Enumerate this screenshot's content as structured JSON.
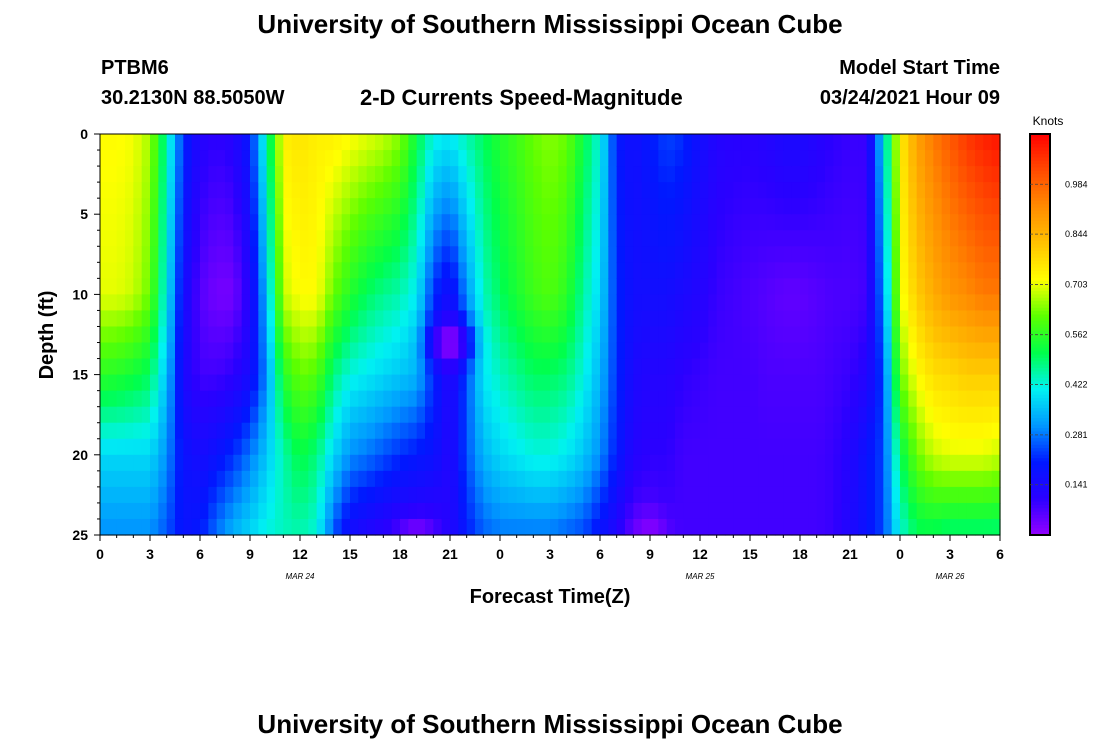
{
  "header": {
    "title_top": "University of Southern Mississippi Ocean Cube",
    "station_id": "PTBM6",
    "station_coords": "30.2130N 88.5050W",
    "subtitle": "2-D Currents Speed-Magnitude",
    "model_start_label": "Model Start Time",
    "model_start_time": "03/24/2021 Hour 09"
  },
  "footer": {
    "title_bottom": "University of Southern Mississippi Ocean Cube"
  },
  "chart_data": {
    "type": "heatmap",
    "title": "2-D Currents Speed-Magnitude",
    "xlabel": "Forecast Time(Z)",
    "ylabel": "Depth (ft)",
    "x_hours_range": [
      0,
      54
    ],
    "x_tick_labels": [
      "0",
      "3",
      "6",
      "9",
      "12",
      "15",
      "18",
      "21",
      "0",
      "3",
      "6",
      "9",
      "12",
      "15",
      "18",
      "21",
      "0",
      "3",
      "6"
    ],
    "date_labels": [
      {
        "label": "MAR 24",
        "hour": 12
      },
      {
        "label": "MAR 25",
        "hour": 36
      },
      {
        "label": "MAR 26",
        "hour": 51
      }
    ],
    "y_range": [
      0,
      25
    ],
    "y_tick_labels": [
      "0",
      "5",
      "10",
      "15",
      "20",
      "25"
    ],
    "y_tick_values": [
      0,
      5,
      10,
      15,
      20,
      25
    ],
    "colorbar": {
      "unit_label": "Knots",
      "min": 0.0,
      "max": 1.125,
      "tick_labels": [
        "0.984",
        "0.844",
        "0.703",
        "0.562",
        "0.422",
        "0.281",
        "0.141"
      ],
      "tick_values": [
        0.984,
        0.844,
        0.703,
        0.562,
        0.422,
        0.281,
        0.141
      ],
      "colors": [
        "#9400ff",
        "#2a00ff",
        "#0018ff",
        "#0098ff",
        "#00f2f2",
        "#00ff4a",
        "#5cff00",
        "#ffff00",
        "#ffc200",
        "#ff8c00",
        "#ff4a00",
        "#ff0000"
      ]
    },
    "columns": [
      {
        "hour": 0,
        "top": 0.72,
        "d10": 0.7,
        "d15": 0.56,
        "d20": 0.38,
        "bottom": 0.3
      },
      {
        "hour": 1,
        "top": 0.72,
        "d10": 0.7,
        "d15": 0.55,
        "d20": 0.38,
        "bottom": 0.3
      },
      {
        "hour": 2,
        "top": 0.71,
        "d10": 0.68,
        "d15": 0.53,
        "d20": 0.38,
        "bottom": 0.3
      },
      {
        "hour": 3,
        "top": 0.66,
        "d10": 0.62,
        "d15": 0.5,
        "d20": 0.38,
        "bottom": 0.3
      },
      {
        "hour": 4,
        "top": 0.45,
        "d10": 0.4,
        "d15": 0.35,
        "d20": 0.3,
        "bottom": 0.25
      },
      {
        "hour": 5,
        "top": 0.22,
        "d10": 0.16,
        "d15": 0.14,
        "d20": 0.18,
        "bottom": 0.18
      },
      {
        "hour": 6,
        "top": 0.12,
        "d10": 0.06,
        "d15": 0.08,
        "d20": 0.15,
        "bottom": 0.2
      },
      {
        "hour": 7,
        "top": 0.1,
        "d10": 0.03,
        "d15": 0.08,
        "d20": 0.18,
        "bottom": 0.28
      },
      {
        "hour": 8,
        "top": 0.12,
        "d10": 0.03,
        "d15": 0.1,
        "d20": 0.22,
        "bottom": 0.34
      },
      {
        "hour": 9,
        "top": 0.2,
        "d10": 0.12,
        "d15": 0.15,
        "d20": 0.28,
        "bottom": 0.38
      },
      {
        "hour": 10,
        "top": 0.45,
        "d10": 0.35,
        "d15": 0.3,
        "d20": 0.36,
        "bottom": 0.42
      },
      {
        "hour": 11,
        "top": 0.74,
        "d10": 0.68,
        "d15": 0.55,
        "d20": 0.45,
        "bottom": 0.44
      },
      {
        "hour": 12,
        "top": 0.76,
        "d10": 0.72,
        "d15": 0.62,
        "d20": 0.52,
        "bottom": 0.45
      },
      {
        "hour": 13,
        "top": 0.74,
        "d10": 0.72,
        "d15": 0.6,
        "d20": 0.48,
        "bottom": 0.42
      },
      {
        "hour": 14,
        "top": 0.74,
        "d10": 0.62,
        "d15": 0.48,
        "d20": 0.38,
        "bottom": 0.25
      },
      {
        "hour": 15,
        "top": 0.72,
        "d10": 0.55,
        "d15": 0.42,
        "d20": 0.3,
        "bottom": 0.15
      },
      {
        "hour": 16,
        "top": 0.7,
        "d10": 0.5,
        "d15": 0.4,
        "d20": 0.28,
        "bottom": 0.12
      },
      {
        "hour": 17,
        "top": 0.68,
        "d10": 0.47,
        "d15": 0.38,
        "d20": 0.25,
        "bottom": 0.1
      },
      {
        "hour": 18,
        "top": 0.64,
        "d10": 0.45,
        "d15": 0.36,
        "d20": 0.22,
        "bottom": 0.08
      },
      {
        "hour": 19,
        "top": 0.52,
        "d10": 0.4,
        "d15": 0.34,
        "d20": 0.2,
        "bottom": 0.08
      },
      {
        "hour": 20,
        "top": 0.42,
        "d10": 0.22,
        "d15": 0.22,
        "d20": 0.18,
        "bottom": 0.08
      },
      {
        "hour": 21,
        "top": 0.4,
        "d10": 0.15,
        "d15": 0.12,
        "d20": 0.12,
        "bottom": 0.12
      },
      {
        "hour": 22,
        "top": 0.45,
        "d10": 0.3,
        "d15": 0.25,
        "d20": 0.25,
        "bottom": 0.2
      },
      {
        "hour": 23,
        "top": 0.5,
        "d10": 0.44,
        "d15": 0.4,
        "d20": 0.34,
        "bottom": 0.26
      },
      {
        "hour": 24,
        "top": 0.55,
        "d10": 0.5,
        "d15": 0.44,
        "d20": 0.38,
        "bottom": 0.28
      },
      {
        "hour": 25,
        "top": 0.58,
        "d10": 0.54,
        "d15": 0.47,
        "d20": 0.4,
        "bottom": 0.28
      },
      {
        "hour": 26,
        "top": 0.62,
        "d10": 0.58,
        "d15": 0.5,
        "d20": 0.42,
        "bottom": 0.28
      },
      {
        "hour": 27,
        "top": 0.64,
        "d10": 0.6,
        "d15": 0.5,
        "d20": 0.42,
        "bottom": 0.28
      },
      {
        "hour": 28,
        "top": 0.62,
        "d10": 0.56,
        "d15": 0.48,
        "d20": 0.4,
        "bottom": 0.26
      },
      {
        "hour": 29,
        "top": 0.52,
        "d10": 0.46,
        "d15": 0.42,
        "d20": 0.36,
        "bottom": 0.24
      },
      {
        "hour": 30,
        "top": 0.42,
        "d10": 0.38,
        "d15": 0.34,
        "d20": 0.3,
        "bottom": 0.18
      },
      {
        "hour": 31,
        "top": 0.2,
        "d10": 0.22,
        "d15": 0.22,
        "d20": 0.2,
        "bottom": 0.12
      },
      {
        "hour": 32,
        "top": 0.16,
        "d10": 0.16,
        "d15": 0.14,
        "d20": 0.12,
        "bottom": 0.06
      },
      {
        "hour": 33,
        "top": 0.2,
        "d10": 0.16,
        "d15": 0.12,
        "d20": 0.1,
        "bottom": 0.06
      },
      {
        "hour": 34,
        "top": 0.24,
        "d10": 0.16,
        "d15": 0.12,
        "d20": 0.1,
        "bottom": 0.08
      },
      {
        "hour": 35,
        "top": 0.22,
        "d10": 0.14,
        "d15": 0.1,
        "d20": 0.08,
        "bottom": 0.08
      },
      {
        "hour": 36,
        "top": 0.16,
        "d10": 0.12,
        "d15": 0.09,
        "d20": 0.08,
        "bottom": 0.08
      },
      {
        "hour": 37,
        "top": 0.12,
        "d10": 0.09,
        "d15": 0.08,
        "d20": 0.08,
        "bottom": 0.08
      },
      {
        "hour": 38,
        "top": 0.11,
        "d10": 0.08,
        "d15": 0.08,
        "d20": 0.08,
        "bottom": 0.08
      },
      {
        "hour": 39,
        "top": 0.11,
        "d10": 0.07,
        "d15": 0.08,
        "d20": 0.08,
        "bottom": 0.08
      },
      {
        "hour": 40,
        "top": 0.12,
        "d10": 0.06,
        "d15": 0.07,
        "d20": 0.08,
        "bottom": 0.08
      },
      {
        "hour": 41,
        "top": 0.14,
        "d10": 0.05,
        "d15": 0.07,
        "d20": 0.08,
        "bottom": 0.08
      },
      {
        "hour": 42,
        "top": 0.14,
        "d10": 0.05,
        "d15": 0.07,
        "d20": 0.08,
        "bottom": 0.08
      },
      {
        "hour": 43,
        "top": 0.12,
        "d10": 0.06,
        "d15": 0.07,
        "d20": 0.08,
        "bottom": 0.08
      },
      {
        "hour": 44,
        "top": 0.1,
        "d10": 0.07,
        "d15": 0.08,
        "d20": 0.09,
        "bottom": 0.09
      },
      {
        "hour": 45,
        "top": 0.09,
        "d10": 0.07,
        "d15": 0.09,
        "d20": 0.12,
        "bottom": 0.13
      },
      {
        "hour": 46,
        "top": 0.09,
        "d10": 0.08,
        "d15": 0.12,
        "d20": 0.18,
        "bottom": 0.18
      },
      {
        "hour": 47,
        "top": 0.38,
        "d10": 0.3,
        "d15": 0.24,
        "d20": 0.24,
        "bottom": 0.24
      },
      {
        "hour": 48,
        "top": 0.74,
        "d10": 0.7,
        "d15": 0.62,
        "d20": 0.5,
        "bottom": 0.42
      },
      {
        "hour": 49,
        "top": 0.88,
        "d10": 0.8,
        "d15": 0.72,
        "d20": 0.62,
        "bottom": 0.5
      },
      {
        "hour": 50,
        "top": 0.95,
        "d10": 0.86,
        "d15": 0.77,
        "d20": 0.68,
        "bottom": 0.5
      },
      {
        "hour": 51,
        "top": 1.0,
        "d10": 0.9,
        "d15": 0.78,
        "d20": 0.7,
        "bottom": 0.48
      },
      {
        "hour": 52,
        "top": 1.05,
        "d10": 0.92,
        "d15": 0.8,
        "d20": 0.7,
        "bottom": 0.48
      },
      {
        "hour": 53,
        "top": 1.08,
        "d10": 0.95,
        "d15": 0.8,
        "d20": 0.7,
        "bottom": 0.48
      },
      {
        "hour": 54,
        "top": 1.1,
        "d10": 0.95,
        "d15": 0.8,
        "d20": 0.68,
        "bottom": 0.48
      }
    ],
    "patches": [
      {
        "hour": 21,
        "depth": 13,
        "value": 0.01,
        "radius_hours": 1.2,
        "radius_depth": 1.4
      },
      {
        "hour": 33,
        "depth": 24.5,
        "value": 0.02,
        "radius_hours": 1.0,
        "radius_depth": 1.0
      },
      {
        "hour": 19,
        "depth": 24.5,
        "value": 0.04,
        "radius_hours": 1.0,
        "radius_depth": 0.8
      }
    ]
  }
}
